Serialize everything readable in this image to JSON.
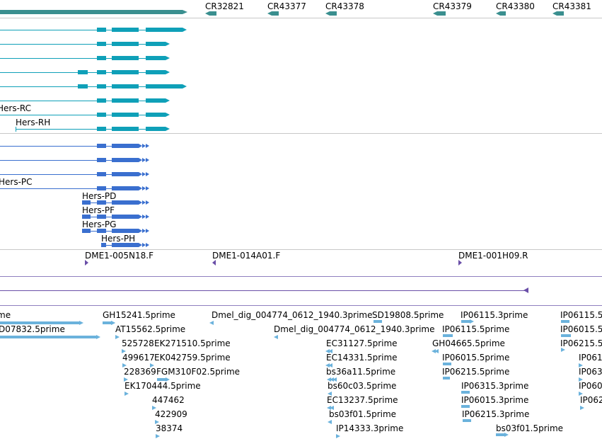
{
  "colors": {
    "gene_top": "#3a8f8f",
    "mrna_teal": "#0fa0b8",
    "mrna_blue": "#3a6fcf",
    "est_light": "#6bb2dc",
    "purple": "#6a4fa8",
    "rule": "#c8c8c8"
  },
  "ncrna_labels": [
    "CR32821",
    "CR43377",
    "CR43378",
    "CR43379",
    "CR43380",
    "CR43381"
  ],
  "teal_transcripts": [
    "Hers-RC",
    "Hers-RH"
  ],
  "blue_transcripts": [
    "Hers-PC",
    "Hers-PD",
    "Hers-PF",
    "Hers-PG",
    "Hers-PH"
  ],
  "bac_ends": [
    "DME1-005N18.F",
    "DME1-014A01.F",
    "DME1-001H09.R"
  ],
  "est_labels": {
    "col_a": [
      "me",
      "D07832.5prime"
    ],
    "col_b": [
      "GH15241.5prime",
      "AT15562.5prime",
      "525728",
      "EK271510.5prime",
      "499617",
      "EK042759.5prime",
      "228369",
      "FGM310F02.5prime",
      "EK170444.5prime",
      "447462",
      "422909",
      "38374"
    ],
    "col_c": [
      "Dmel_dig_004774_0612_1940.3prime",
      "SD19808.5prime",
      "Dmel_dig_004774_0612_1940.3prime"
    ],
    "col_d": [
      "EC31127.5prime",
      "EC14331.5prime",
      "bs36a11.5prime",
      "bs60c03.5prime",
      "EC13237.5prime",
      "bs03f01.5prime",
      "IP14333.3prime"
    ],
    "col_e": [
      "IP06115.3prime",
      "IP06115.5prime",
      "GH04665.5prime",
      "IP06015.5prime",
      "IP06215.5prime",
      "IP06315.3prime",
      "IP06015.3prime",
      "IP06215.3prime",
      "bs03f01.5prime"
    ],
    "col_f": [
      "IP06115.5",
      "IP06015.5",
      "IP06215.5",
      "IP061",
      "IP063",
      "IP060",
      "IP062"
    ]
  }
}
